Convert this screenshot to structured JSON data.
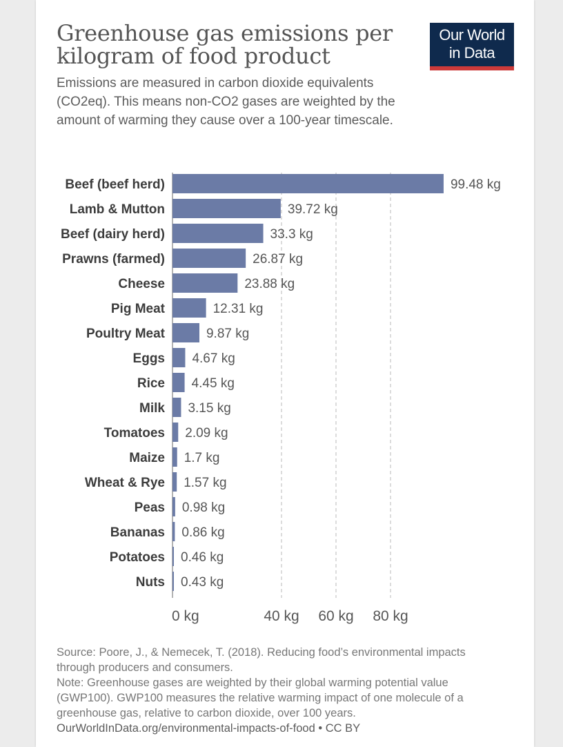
{
  "header": {
    "title_line1": "Greenhouse gas emissions per",
    "title_line2": "kilogram of food product",
    "subtitle": "Emissions are measured in carbon dioxide equivalents (CO2eq). This means non-CO2 gases are weighted by the amount of warming they cause over a 100-year timescale."
  },
  "logo": {
    "line1": "Our World",
    "line2": "in Data"
  },
  "colors": {
    "bar": "#6b7ba6",
    "grid": "#d0d0d0",
    "logo_bg": "#0f2a4d",
    "logo_accent": "#cc3a3a"
  },
  "chart_data": {
    "type": "bar",
    "orientation": "horizontal",
    "unit": "kg",
    "categories": [
      "Beef (beef herd)",
      "Lamb & Mutton",
      "Beef (dairy herd)",
      "Prawns (farmed)",
      "Cheese",
      "Pig Meat",
      "Poultry Meat",
      "Eggs",
      "Rice",
      "Milk",
      "Tomatoes",
      "Maize",
      "Wheat & Rye",
      "Peas",
      "Bananas",
      "Potatoes",
      "Nuts"
    ],
    "values": [
      99.48,
      39.72,
      33.3,
      26.87,
      23.88,
      12.31,
      9.87,
      4.67,
      4.45,
      3.15,
      2.09,
      1.7,
      1.57,
      0.98,
      0.86,
      0.46,
      0.43
    ],
    "value_labels": [
      "99.48 kg",
      "39.72 kg",
      "33.3 kg",
      "26.87 kg",
      "23.88 kg",
      "12.31 kg",
      "9.87 kg",
      "4.67 kg",
      "4.45 kg",
      "3.15 kg",
      "2.09 kg",
      "1.7 kg",
      "1.57 kg",
      "0.98 kg",
      "0.86 kg",
      "0.46 kg",
      "0.43 kg"
    ],
    "x_ticks": [
      0,
      40,
      60,
      80
    ],
    "x_tick_labels": [
      "0 kg",
      "40 kg",
      "60 kg",
      "80 kg"
    ],
    "xlim": [
      0,
      100
    ],
    "grid": true
  },
  "footer": {
    "source": "Source: Poore, J., & Nemecek, T. (2018). Reducing food’s environmental impacts through producers and consumers.",
    "note": "Note: Greenhouse gases are weighted by their global warming potential value (GWP100). GWP100 measures the relative warming impact of one molecule of a greenhouse gas, relative to carbon dioxide, over 100 years.",
    "url": "OurWorldInData.org/environmental-impacts-of-food • CC BY"
  }
}
